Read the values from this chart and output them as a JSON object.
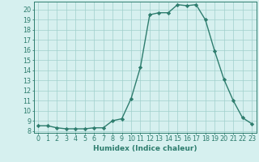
{
  "x": [
    0,
    1,
    2,
    3,
    4,
    5,
    6,
    7,
    8,
    9,
    10,
    11,
    12,
    13,
    14,
    15,
    16,
    17,
    18,
    19,
    20,
    21,
    22,
    23
  ],
  "y": [
    8.5,
    8.5,
    8.3,
    8.2,
    8.2,
    8.2,
    8.3,
    8.3,
    9.0,
    9.2,
    11.2,
    14.3,
    19.5,
    19.7,
    19.7,
    20.5,
    20.4,
    20.5,
    19.0,
    15.9,
    13.1,
    11.0,
    9.3,
    8.7
  ],
  "line_color": "#2e7d6e",
  "marker": "D",
  "marker_size": 2.2,
  "bg_color": "#d6f0ef",
  "grid_color": "#a0d0cc",
  "xlabel": "Humidex (Indice chaleur)",
  "xlim": [
    -0.5,
    23.5
  ],
  "ylim": [
    7.8,
    20.8
  ],
  "yticks": [
    8,
    9,
    10,
    11,
    12,
    13,
    14,
    15,
    16,
    17,
    18,
    19,
    20
  ],
  "xticks": [
    0,
    1,
    2,
    3,
    4,
    5,
    6,
    7,
    8,
    9,
    10,
    11,
    12,
    13,
    14,
    15,
    16,
    17,
    18,
    19,
    20,
    21,
    22,
    23
  ],
  "xlabel_fontsize": 6.5,
  "tick_fontsize": 5.8,
  "line_width": 1.0
}
